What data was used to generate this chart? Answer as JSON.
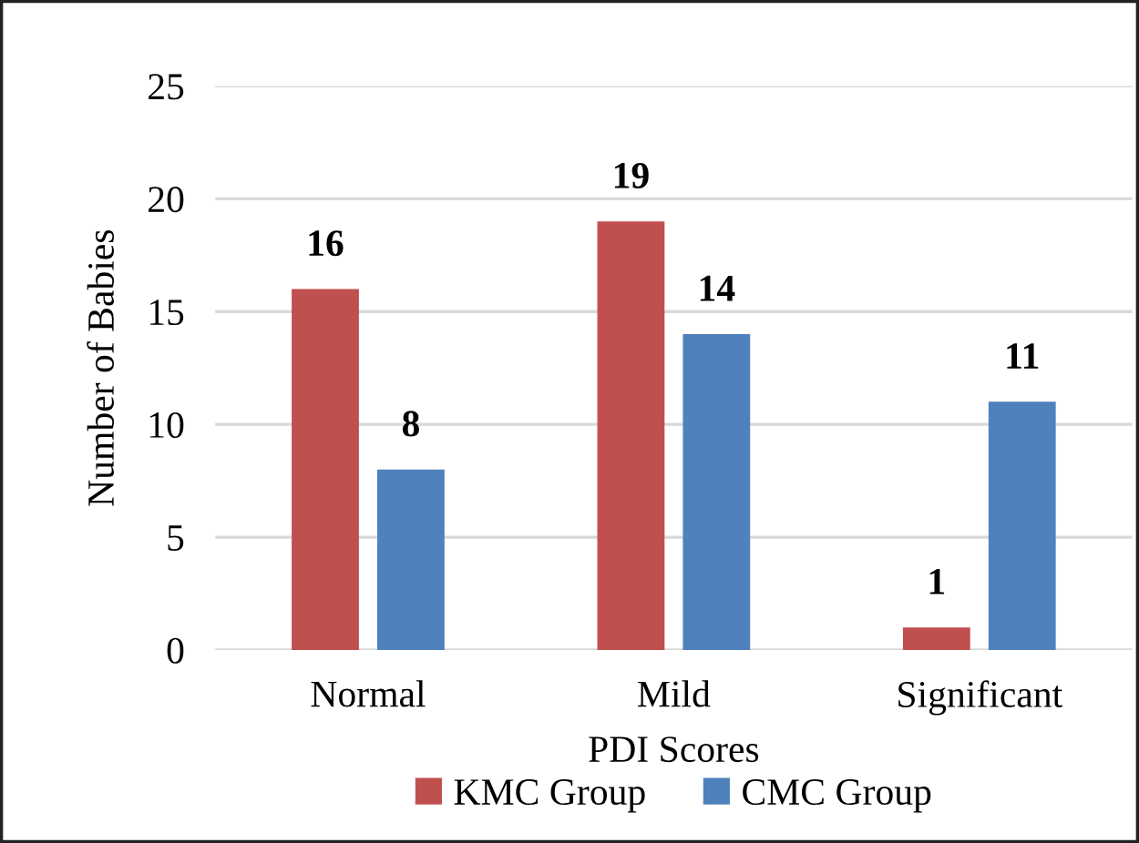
{
  "chart_data": {
    "type": "bar",
    "xlabel": "PDI Scores",
    "ylabel": "Number of Babies",
    "categories": [
      "Normal",
      "Mild",
      "Significant"
    ],
    "series": [
      {
        "name": "KMC Group",
        "color": "#c0504d",
        "values": [
          16,
          19,
          1
        ]
      },
      {
        "name": "CMC Group",
        "color": "#4f81bd",
        "values": [
          8,
          14,
          11
        ]
      }
    ],
    "ylim": [
      0,
      25
    ],
    "yticks": [
      0,
      5,
      10,
      15,
      20,
      25
    ],
    "grid": "y",
    "legend": "bottom",
    "data_labels": true
  }
}
